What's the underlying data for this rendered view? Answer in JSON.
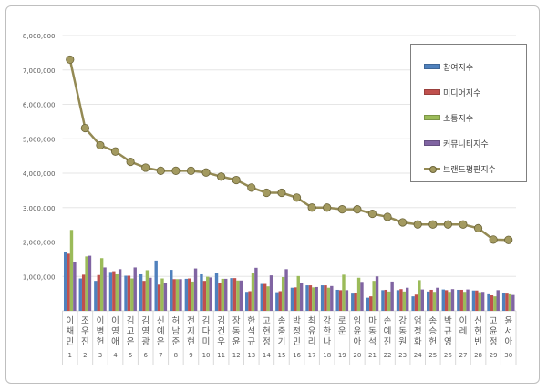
{
  "chart_data": {
    "type": "bar+line",
    "categories": [
      "이채민",
      "조우진",
      "이병헌",
      "이영애",
      "김고은",
      "김영광",
      "신예은",
      "허남준",
      "전지현",
      "김다미",
      "김건우",
      "장동윤",
      "한석규",
      "고현정",
      "송중기",
      "박정민",
      "최유리",
      "강한나",
      "로운",
      "임윤아",
      "마동석",
      "손예진",
      "강동원",
      "엄정화",
      "송승헌",
      "박규영",
      "이레",
      "신현빈",
      "고윤정",
      "윤서아"
    ],
    "ranks": [
      "1",
      "2",
      "3",
      "4",
      "5",
      "6",
      "7",
      "8",
      "9",
      "10",
      "11",
      "12",
      "13",
      "14",
      "15",
      "16",
      "17",
      "18",
      "19",
      "20",
      "21",
      "22",
      "23",
      "24",
      "25",
      "26",
      "27",
      "28",
      "29",
      "30"
    ],
    "ylim": [
      0,
      8000000
    ],
    "yticks": [
      "8,000,000",
      "7,000,000",
      "6,000,000",
      "5,000,000",
      "4,000,000",
      "3,000,000",
      "2,000,000",
      "1,000,000"
    ],
    "ytick_values": [
      8000000,
      7000000,
      6000000,
      5000000,
      4000000,
      3000000,
      2000000,
      1000000
    ],
    "grid": true,
    "legend_position": "top-right",
    "series": [
      {
        "name": "참여지수",
        "kind": "bar",
        "color": "#4f81bd",
        "values": [
          1710000,
          940000,
          870000,
          1130000,
          1020000,
          1060000,
          1460000,
          1190000,
          930000,
          1060000,
          1100000,
          950000,
          550000,
          780000,
          540000,
          670000,
          740000,
          740000,
          610000,
          500000,
          380000,
          600000,
          600000,
          420000,
          560000,
          620000,
          610000,
          590000,
          480000,
          520000
        ]
      },
      {
        "name": "미디어지수",
        "kind": "bar",
        "color": "#c0504d",
        "values": [
          1660000,
          1050000,
          1040000,
          1150000,
          1020000,
          870000,
          760000,
          920000,
          940000,
          870000,
          820000,
          950000,
          570000,
          780000,
          570000,
          680000,
          740000,
          740000,
          600000,
          530000,
          420000,
          610000,
          630000,
          470000,
          610000,
          600000,
          610000,
          590000,
          450000,
          500000
        ]
      },
      {
        "name": "소통지수",
        "kind": "bar",
        "color": "#9bbb59",
        "values": [
          2350000,
          1580000,
          1530000,
          1060000,
          940000,
          1180000,
          940000,
          920000,
          850000,
          990000,
          930000,
          880000,
          1100000,
          710000,
          980000,
          1010000,
          680000,
          670000,
          1050000,
          960000,
          870000,
          560000,
          560000,
          890000,
          550000,
          550000,
          550000,
          540000,
          420000,
          480000
        ]
      },
      {
        "name": "커뮤니티지수",
        "kind": "bar",
        "color": "#8064a2",
        "values": [
          1410000,
          1600000,
          1260000,
          1210000,
          1260000,
          960000,
          810000,
          920000,
          1230000,
          970000,
          930000,
          880000,
          1250000,
          1030000,
          1210000,
          810000,
          690000,
          720000,
          600000,
          840000,
          1000000,
          850000,
          670000,
          620000,
          670000,
          630000,
          620000,
          550000,
          600000,
          460000
        ]
      },
      {
        "name": "브랜드평판지수",
        "kind": "line",
        "color": "#948a54",
        "values": [
          7300000,
          5310000,
          4810000,
          4630000,
          4330000,
          4160000,
          4070000,
          4070000,
          4070000,
          4020000,
          3900000,
          3800000,
          3580000,
          3430000,
          3430000,
          3290000,
          3000000,
          3000000,
          2950000,
          2950000,
          2820000,
          2730000,
          2570000,
          2510000,
          2510000,
          2510000,
          2510000,
          2400000,
          2070000,
          2060000
        ]
      }
    ]
  }
}
